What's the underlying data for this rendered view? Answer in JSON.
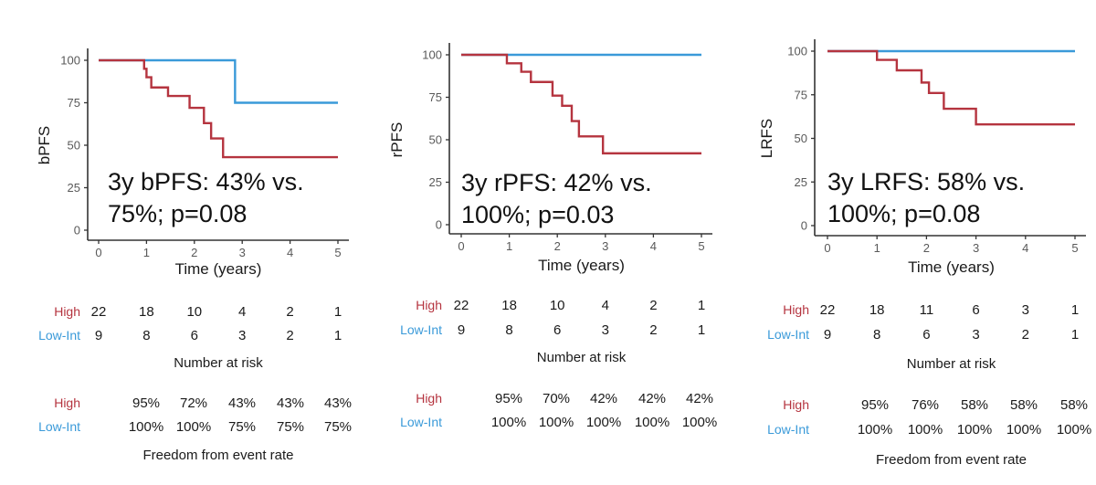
{
  "colors": {
    "high": "#b5343f",
    "low_int": "#3a9ad9"
  },
  "chart_data": [
    {
      "type": "line",
      "subtype": "kaplan-meier step",
      "ylabel": "bPFS",
      "xlabel": "Time (years)",
      "xlim": [
        0,
        5
      ],
      "ylim": [
        0,
        100
      ],
      "xticks": [
        "0",
        "1",
        "2",
        "3",
        "4",
        "5"
      ],
      "yticks": [
        "0",
        "25",
        "50",
        "75",
        "100"
      ],
      "annotation": [
        "3y bPFS: 43% vs.",
        "75%; p=0.08"
      ],
      "series": [
        {
          "name": "High",
          "color": "#b5343f",
          "x": [
            0,
            0.95,
            1.0,
            1.1,
            1.45,
            1.9,
            2.2,
            2.35,
            2.6,
            5
          ],
          "y": [
            100,
            95,
            90,
            84,
            79,
            72,
            63,
            54,
            43,
            43
          ]
        },
        {
          "name": "Low-Int",
          "color": "#3a9ad9",
          "x": [
            0,
            2.85,
            5
          ],
          "y": [
            100,
            75,
            75
          ]
        }
      ],
      "risk_table": {
        "title": "Number at risk",
        "rows": [
          {
            "label": "High",
            "values": [
              "22",
              "18",
              "10",
              "4",
              "2",
              "1"
            ]
          },
          {
            "label": "Low-Int",
            "values": [
              "9",
              "8",
              "6",
              "3",
              "2",
              "1"
            ]
          }
        ]
      },
      "event_table": {
        "title": "Freedom from event rate",
        "rows": [
          {
            "label": "High",
            "values": [
              "95%",
              "72%",
              "43%",
              "43%",
              "43%"
            ]
          },
          {
            "label": "Low-Int",
            "values": [
              "100%",
              "100%",
              "75%",
              "75%",
              "75%"
            ]
          }
        ]
      }
    },
    {
      "type": "line",
      "subtype": "kaplan-meier step",
      "ylabel": "rPFS",
      "xlabel": "Time (years)",
      "xlim": [
        0,
        5
      ],
      "ylim": [
        0,
        100
      ],
      "xticks": [
        "0",
        "1",
        "2",
        "3",
        "4",
        "5"
      ],
      "yticks": [
        "0",
        "25",
        "50",
        "75",
        "100"
      ],
      "annotation": [
        "3y rPFS: 42% vs.",
        "100%; p=0.03"
      ],
      "series": [
        {
          "name": "High",
          "color": "#b5343f",
          "x": [
            0,
            0.95,
            1.25,
            1.45,
            1.9,
            2.1,
            2.3,
            2.45,
            2.95,
            5
          ],
          "y": [
            100,
            95,
            90,
            84,
            76,
            70,
            61,
            52,
            42,
            42
          ]
        },
        {
          "name": "Low-Int",
          "color": "#3a9ad9",
          "x": [
            0,
            5
          ],
          "y": [
            100,
            100
          ]
        }
      ],
      "risk_table": {
        "title": "Number at risk",
        "rows": [
          {
            "label": "High",
            "values": [
              "22",
              "18",
              "10",
              "4",
              "2",
              "1"
            ]
          },
          {
            "label": "Low-Int",
            "values": [
              "9",
              "8",
              "6",
              "3",
              "2",
              "1"
            ]
          }
        ]
      },
      "event_table": {
        "title": "",
        "rows": [
          {
            "label": "High",
            "values": [
              "95%",
              "70%",
              "42%",
              "42%",
              "42%"
            ]
          },
          {
            "label": "Low-Int",
            "values": [
              "100%",
              "100%",
              "100%",
              "100%",
              "100%"
            ]
          }
        ]
      }
    },
    {
      "type": "line",
      "subtype": "kaplan-meier step",
      "ylabel": "LRFS",
      "xlabel": "Time (years)",
      "xlim": [
        0,
        5
      ],
      "ylim": [
        0,
        100
      ],
      "xticks": [
        "0",
        "1",
        "2",
        "3",
        "4",
        "5"
      ],
      "yticks": [
        "0",
        "25",
        "50",
        "75",
        "100"
      ],
      "annotation": [
        "3y LRFS: 58% vs.",
        "100%; p=0.08"
      ],
      "series": [
        {
          "name": "High",
          "color": "#b5343f",
          "x": [
            0,
            1.0,
            1.4,
            1.9,
            2.05,
            2.35,
            3.0,
            5
          ],
          "y": [
            100,
            95,
            89,
            82,
            76,
            67,
            58,
            58
          ]
        },
        {
          "name": "Low-Int",
          "color": "#3a9ad9",
          "x": [
            0,
            5
          ],
          "y": [
            100,
            100
          ]
        }
      ],
      "risk_table": {
        "title": "Number at risk",
        "rows": [
          {
            "label": "High",
            "values": [
              "22",
              "18",
              "11",
              "6",
              "3",
              "1"
            ]
          },
          {
            "label": "Low-Int",
            "values": [
              "9",
              "8",
              "6",
              "3",
              "2",
              "1"
            ]
          }
        ]
      },
      "event_table": {
        "title": "Freedom from event rate",
        "rows": [
          {
            "label": "High",
            "values": [
              "95%",
              "76%",
              "58%",
              "58%",
              "58%"
            ]
          },
          {
            "label": "Low-Int",
            "values": [
              "100%",
              "100%",
              "100%",
              "100%",
              "100%"
            ]
          }
        ]
      }
    }
  ]
}
